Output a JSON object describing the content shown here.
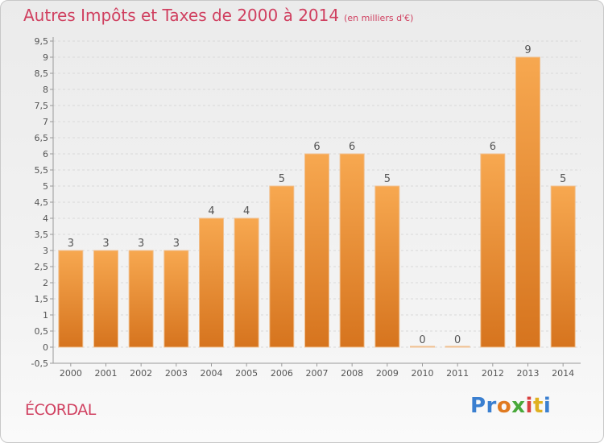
{
  "title": "Autres Impôts et Taxes de 2000 à 2014",
  "unit_note": "(en milliers d'€)",
  "commune": "ÉCORDAL",
  "logo": {
    "parts": [
      "Pr",
      "o",
      "x",
      "i",
      "t",
      "i"
    ]
  },
  "colors": {
    "bar_light": "#f7a850",
    "bar_dark": "#d6741e",
    "title": "#d04060"
  },
  "chart_data": {
    "type": "bar",
    "title": "Autres Impôts et Taxes de 2000 à 2014",
    "categories": [
      "2000",
      "2001",
      "2002",
      "2003",
      "2004",
      "2005",
      "2006",
      "2007",
      "2008",
      "2009",
      "2010",
      "2011",
      "2012",
      "2013",
      "2014"
    ],
    "values": [
      3,
      3,
      3,
      3,
      4,
      4,
      5,
      6,
      6,
      5,
      0,
      0,
      6,
      9,
      5
    ],
    "data_labels": [
      "3",
      "3",
      "3",
      "3",
      "4",
      "4",
      "5",
      "6",
      "6",
      "5",
      "0",
      "0",
      "6",
      "9",
      "5"
    ],
    "yticks": [
      "-0,5",
      "0",
      "0,5",
      "1",
      "1,5",
      "2",
      "2,5",
      "3",
      "3,5",
      "4",
      "4,5",
      "5",
      "5,5",
      "6",
      "6,5",
      "7",
      "7,5",
      "8",
      "8,5",
      "9",
      "9,5"
    ],
    "ytick_values": [
      -0.5,
      0,
      0.5,
      1,
      1.5,
      2,
      2.5,
      3,
      3.5,
      4,
      4.5,
      5,
      5.5,
      6,
      6.5,
      7,
      7.5,
      8,
      8.5,
      9,
      9.5
    ],
    "ylim": [
      -0.5,
      9.5
    ],
    "grid": true,
    "xlabel": "",
    "ylabel": ""
  }
}
